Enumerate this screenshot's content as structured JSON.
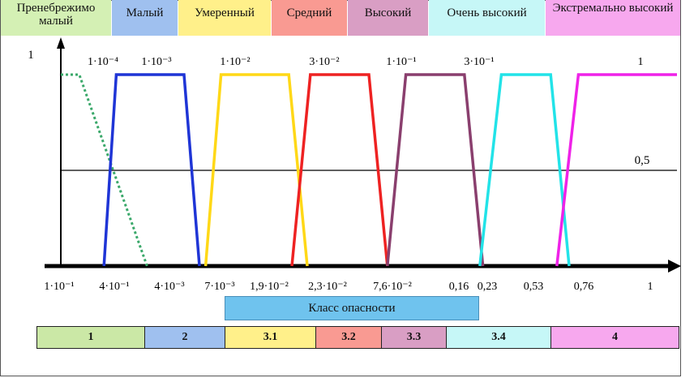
{
  "header_cells": [
    {
      "label": "Пренебрежимо малый",
      "color": "#d4f0b4"
    },
    {
      "label": "Малый",
      "color": "#9fc0ef"
    },
    {
      "label": "Умеренный",
      "color": "#fff08a"
    },
    {
      "label": "Средний",
      "color": "#f99a92"
    },
    {
      "label": "Высокий",
      "color": "#d99ec4"
    },
    {
      "label": "Очень высокий",
      "color": "#c6f7f7"
    },
    {
      "label": "Экстремально высокий",
      "color": "#f7a8ee"
    }
  ],
  "chart_data": {
    "type": "line",
    "title": "",
    "xlabel": "Класс опасности",
    "ylabel": "",
    "ylim": [
      0,
      1
    ],
    "y_ticks": [
      "1",
      "0,5"
    ],
    "top_labels": [
      "1·10⁻⁴",
      "1·10⁻³",
      "1·10⁻²",
      "3·10⁻²",
      "1·10⁻¹",
      "3·10⁻¹",
      "1"
    ],
    "x_tick_labels": [
      "1·10⁻¹",
      "4·10⁻¹",
      "4·10⁻³",
      "7·10⁻³",
      "1,9·10⁻²",
      "2,3·10⁻²",
      "7,6·10⁻²",
      "0,16",
      "0,23",
      "0,53",
      "0,76",
      "1"
    ],
    "series": [
      {
        "name": "Пренебрежимо малый",
        "color": "#3aa86a",
        "style": "dotted",
        "x": [
          0,
          0.06,
          0.28
        ],
        "y": [
          1,
          1,
          0
        ]
      },
      {
        "name": "Малый",
        "color": "#1f35d6",
        "style": "solid",
        "x": [
          0.14,
          0.18,
          0.4,
          0.45
        ],
        "y": [
          0,
          1,
          1,
          0
        ]
      },
      {
        "name": "Умеренный",
        "color": "#ffd817",
        "style": "solid",
        "x": [
          0.47,
          0.52,
          0.74,
          0.8
        ],
        "y": [
          0,
          1,
          1,
          0
        ]
      },
      {
        "name": "Средний",
        "color": "#ee2222",
        "style": "solid",
        "x": [
          0.75,
          0.81,
          1.0,
          1.06
        ],
        "y": [
          0,
          1,
          1,
          0
        ]
      },
      {
        "name": "Высокий",
        "color": "#8a3f6e",
        "style": "solid",
        "x": [
          1.06,
          1.12,
          1.31,
          1.37
        ],
        "y": [
          0,
          1,
          1,
          0
        ]
      },
      {
        "name": "Очень высокий",
        "color": "#22e3e8",
        "style": "solid",
        "x": [
          1.36,
          1.43,
          1.59,
          1.65
        ],
        "y": [
          0,
          1,
          1,
          0
        ]
      },
      {
        "name": "Экстремально высокий",
        "color": "#ef22e8",
        "style": "solid",
        "x": [
          1.61,
          1.68,
          2.0
        ],
        "y": [
          0,
          1,
          1
        ]
      }
    ]
  },
  "axis_label": "Класс опасности",
  "class_cells": [
    {
      "label": "1",
      "color": "#cbe8a6"
    },
    {
      "label": "2",
      "color": "#9fc0ef"
    },
    {
      "label": "3.1",
      "color": "#fff08a"
    },
    {
      "label": "3.2",
      "color": "#f99a92"
    },
    {
      "label": "3.3",
      "color": "#d99ec4"
    },
    {
      "label": "3.4",
      "color": "#c6f7f7"
    },
    {
      "label": "4",
      "color": "#f7a8ee"
    }
  ]
}
